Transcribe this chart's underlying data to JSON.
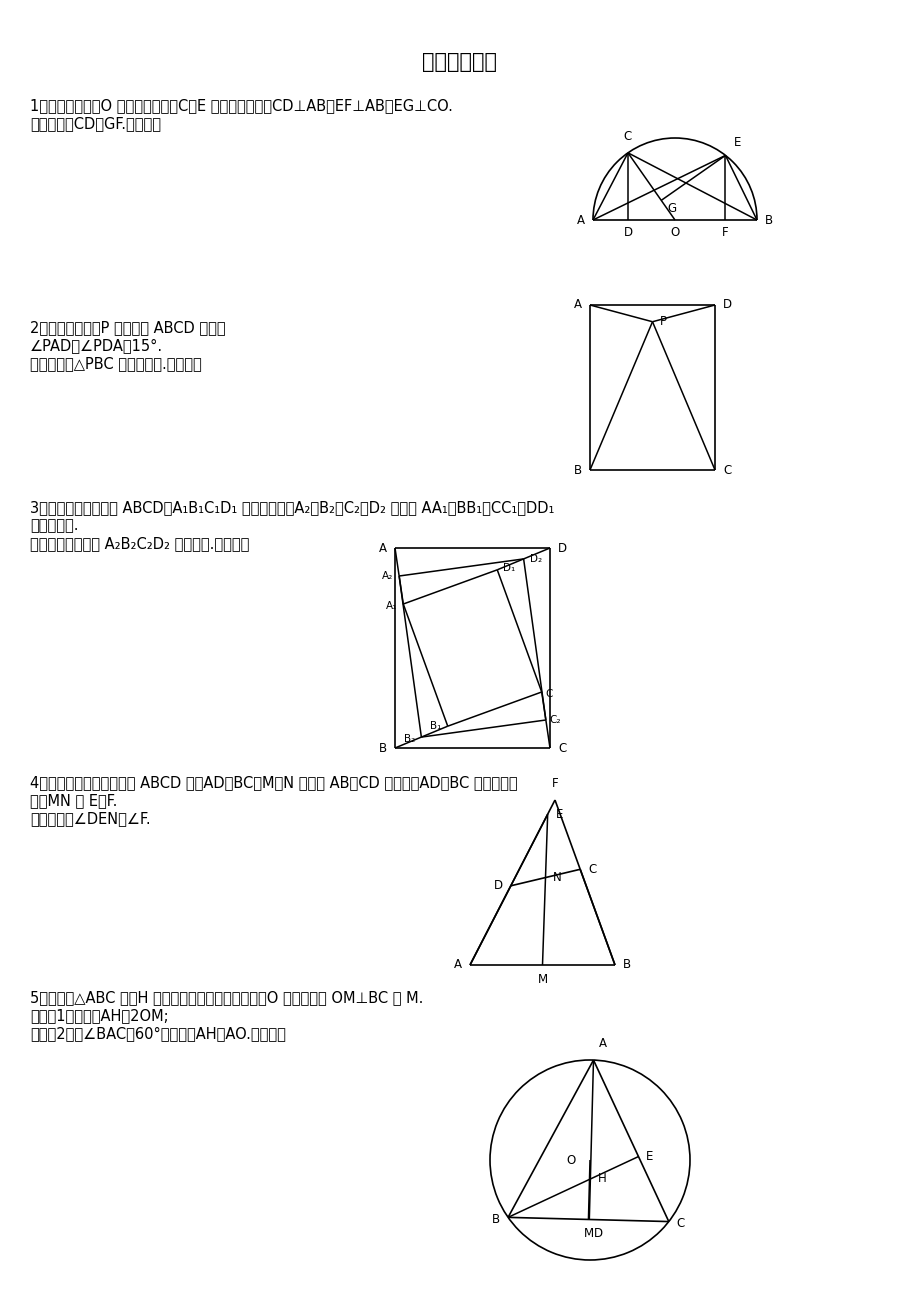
{
  "title": "几何经典难题",
  "bg_color": "#ffffff",
  "p1_text1": "1、已知：如图，O 是半圆的圆心，C、E 是圆上的两点，CD⊥AB，EF⊥AB，EG⊥CO.",
  "p1_text2": "　　求证：CD＝GF.（初三）",
  "p2_text1": "2、已知：如图，P 是正方形 ABCD 内点，",
  "p2_text2": "∠PAD＝∠PDA＝15°.",
  "p2_text3": "　　求证：△PBC 是正三角形.（初二）",
  "p3_text1": "3、如图，已知四边形 ABCD、A₁B₁C₁D₁ 都是正方形，A₂、B₂、C₂、D₂ 分别是 AA₁、BB₁、CC₁、DD₁",
  "p3_text2": "　　的中点.",
  "p3_text3": "　　求证：四边形 A₂B₂C₂D₂ 是正方形.（初二）",
  "p4_text1": "4、已知：如图，在四边形 ABCD 中，AD＝BC，M、N 分别是 AB、CD 的中点，AD、BC 的延长线交",
  "p4_text2": "　　MN 于 E、F.",
  "p4_text3": "　　求证：∠DEN＝∠F.",
  "p5_text1": "5、已知：△ABC 中，H 为垂心（各边高线的交点），O 为外心，且 OM⊥BC 于 M.",
  "p5_text2": "　　（1）求证：AH＝2OM;",
  "p5_text3": "　　（2）若∠BAC＝60°，求证：AH＝AO.（初三）"
}
